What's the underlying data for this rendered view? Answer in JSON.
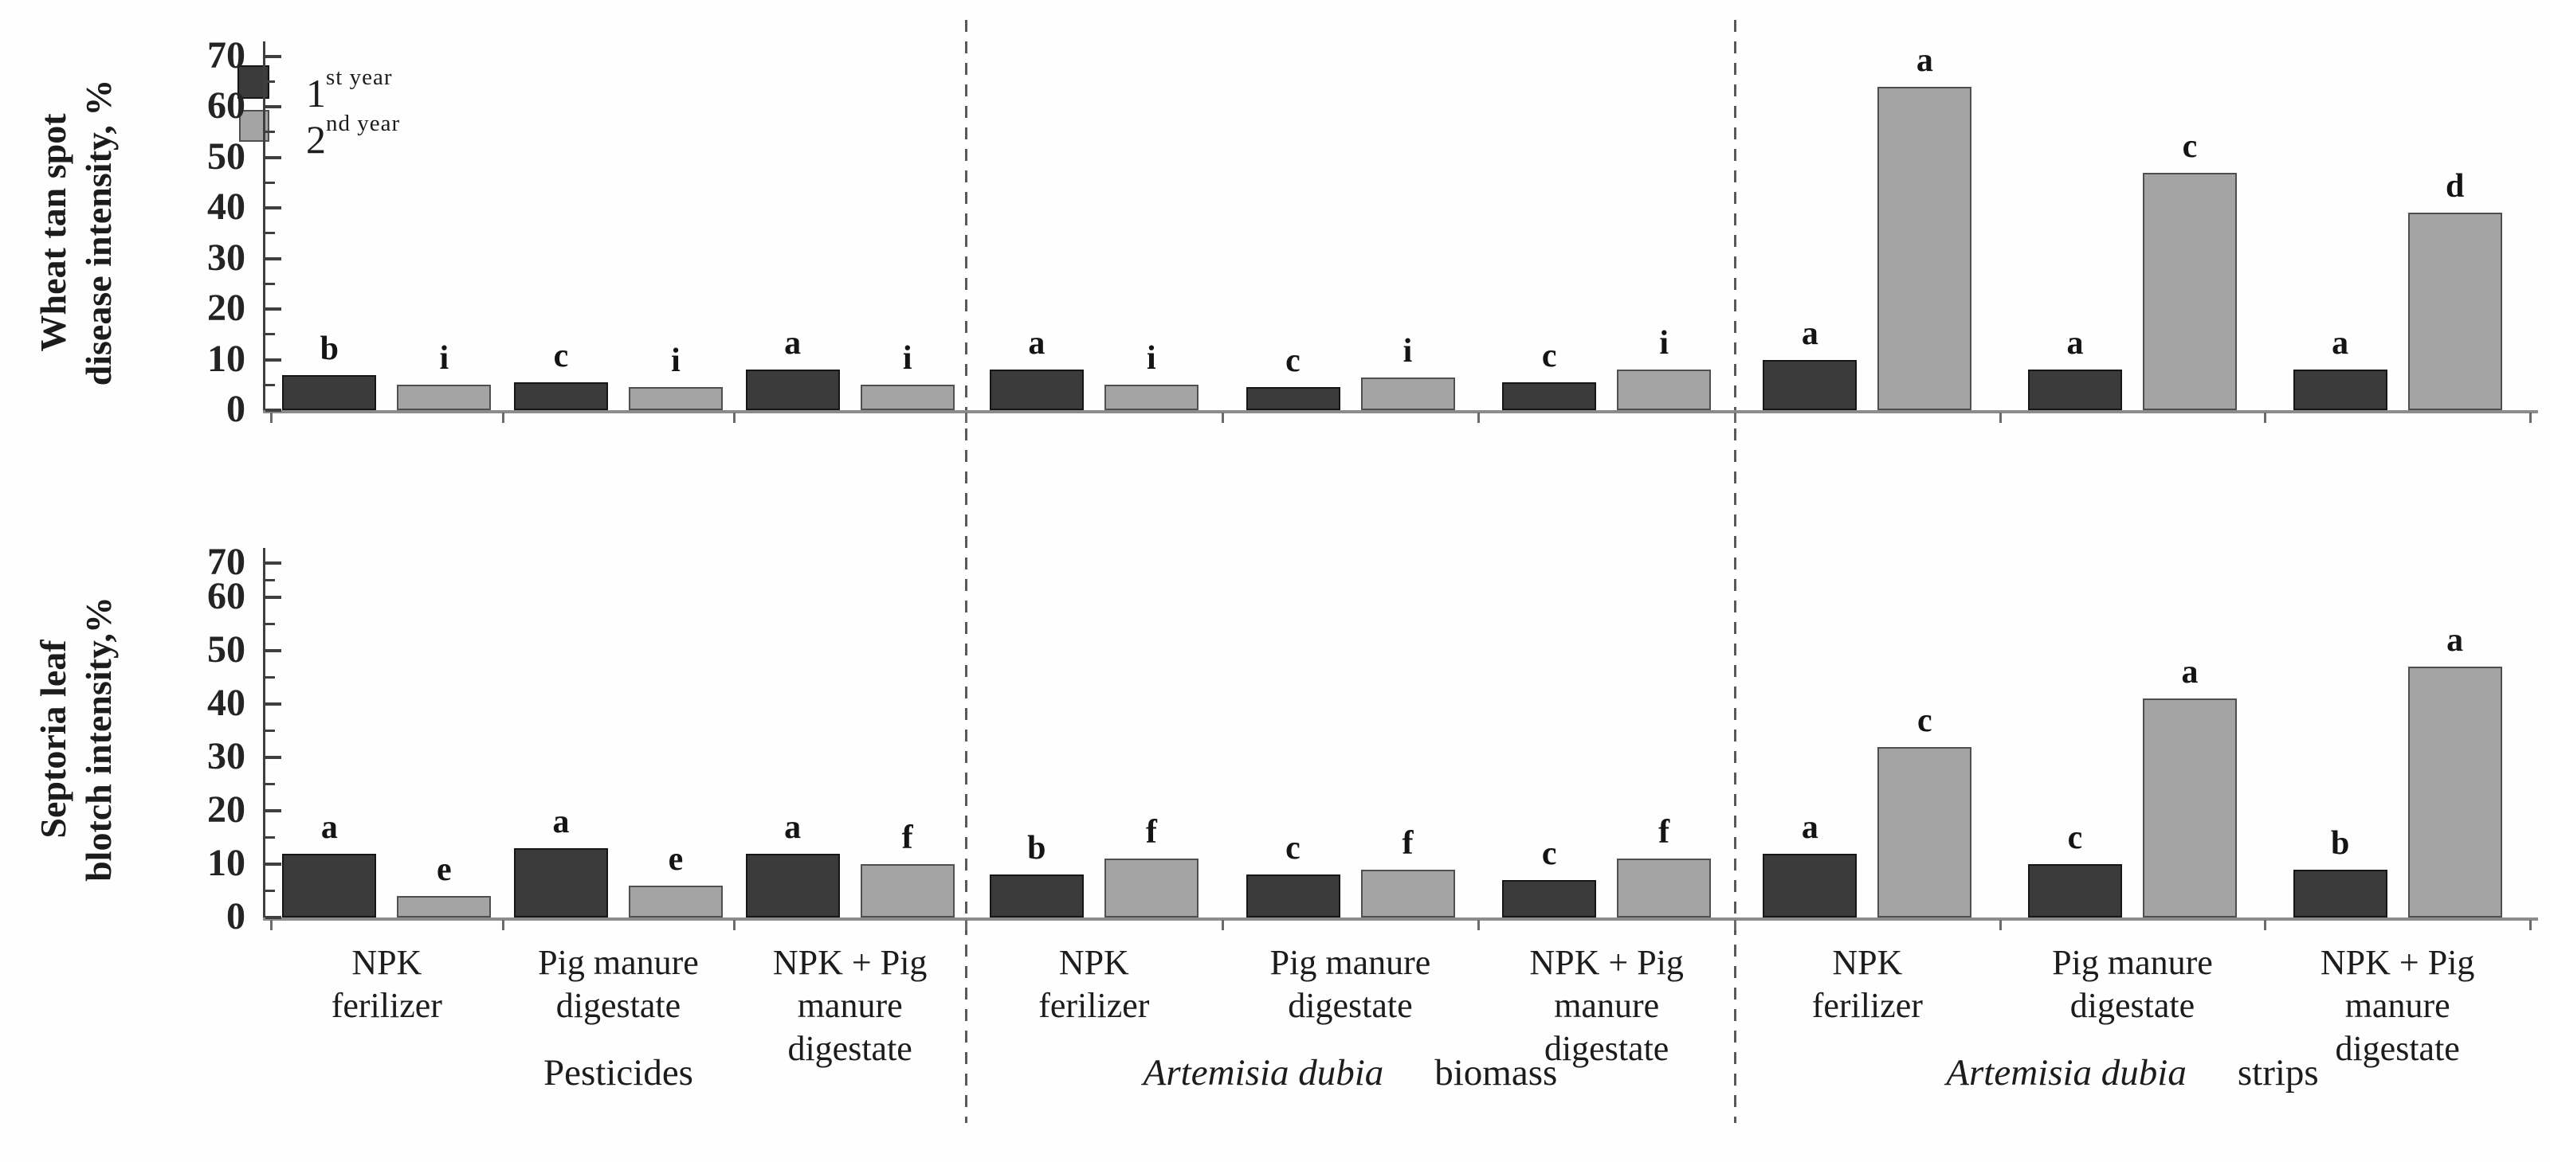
{
  "figure": {
    "colors": {
      "year1_fill": "#3b3b3b",
      "year1_border": "#161616",
      "year2_fill": "#a4a4a4",
      "year2_border": "#4f4f4f",
      "axis": "#3f3f3f",
      "baseline": "#8c8c8c",
      "separator": "#595959",
      "letter": "#141414"
    },
    "legend": [
      {
        "num": "1",
        "sup": "st year",
        "swatch": "#3b3b3b"
      },
      {
        "num": "2",
        "sup": "nd year",
        "swatch": "#a4a4a4"
      }
    ]
  },
  "x_axis": {
    "section_labels": [
      {
        "italic": "",
        "plain": "Pesticides"
      },
      {
        "italic": "Artemisia dubia",
        "plain": "biomass"
      },
      {
        "italic": "Artemisia dubia",
        "plain": "strips"
      }
    ],
    "category_lines": [
      [
        "NPK",
        "ferilizer"
      ],
      [
        "Pig manure",
        "digestate"
      ],
      [
        "NPK + Pig",
        "manure",
        "digestate"
      ]
    ]
  },
  "chart_data": [
    {
      "type": "bar",
      "title": "",
      "ylabel_lines": [
        "Wheat tan spot",
        "disease intensity, %"
      ],
      "ylim": [
        0,
        70
      ],
      "yticks": [
        0,
        10,
        20,
        30,
        40,
        50,
        60,
        70
      ],
      "grid": false,
      "legend_position": "top-left",
      "series": [
        "1st year",
        "2nd year"
      ],
      "sections": [
        {
          "label": "Pesticides",
          "groups": [
            {
              "category": "NPK ferilizer",
              "year1": 7,
              "letter1": "b",
              "year2": 5,
              "letter2": "i"
            },
            {
              "category": "Pig manure digestate",
              "year1": 5.5,
              "letter1": "c",
              "year2": 4.5,
              "letter2": "i"
            },
            {
              "category": "NPK + Pig manure digestate",
              "year1": 8,
              "letter1": "a",
              "year2": 5,
              "letter2": "i"
            }
          ]
        },
        {
          "label": "Artemisia dubia biomass",
          "groups": [
            {
              "category": "NPK ferilizer",
              "year1": 8,
              "letter1": "a",
              "year2": 5,
              "letter2": "i"
            },
            {
              "category": "Pig manure digestate",
              "year1": 4.5,
              "letter1": "c",
              "year2": 6.5,
              "letter2": "i"
            },
            {
              "category": "NPK + Pig manure digestate",
              "year1": 5.5,
              "letter1": "c",
              "year2": 8,
              "letter2": "i"
            }
          ]
        },
        {
          "label": "Artemisia dubia strips",
          "groups": [
            {
              "category": "NPK ferilizer",
              "year1": 10,
              "letter1": "a",
              "year2": 64,
              "letter2": "a"
            },
            {
              "category": "Pig manure digestate",
              "year1": 8,
              "letter1": "a",
              "year2": 47,
              "letter2": "c"
            },
            {
              "category": "NPK + Pig manure digestate",
              "year1": 8,
              "letter1": "a",
              "year2": 39,
              "letter2": "d"
            }
          ]
        }
      ]
    },
    {
      "type": "bar",
      "title": "",
      "ylabel_lines": [
        "Septoria leaf",
        "blotch intensity,%"
      ],
      "ylim": [
        0,
        70
      ],
      "yticks": [
        0,
        10,
        20,
        30,
        40,
        50,
        60,
        70
      ],
      "grid": false,
      "series": [
        "1st year",
        "2nd year"
      ],
      "sections": [
        {
          "label": "Pesticides",
          "groups": [
            {
              "category": "NPK ferilizer",
              "year1": 12,
              "letter1": "a",
              "year2": 4,
              "letter2": "e"
            },
            {
              "category": "Pig manure digestate",
              "year1": 13,
              "letter1": "a",
              "year2": 6,
              "letter2": "e"
            },
            {
              "category": "NPK + Pig manure digestate",
              "year1": 12,
              "letter1": "a",
              "year2": 10,
              "letter2": "f"
            }
          ]
        },
        {
          "label": "Artemisia dubia biomass",
          "groups": [
            {
              "category": "NPK ferilizer",
              "year1": 8,
              "letter1": "b",
              "year2": 11,
              "letter2": "f"
            },
            {
              "category": "Pig manure digestate",
              "year1": 8,
              "letter1": "c",
              "year2": 9,
              "letter2": "f"
            },
            {
              "category": "NPK + Pig manure digestate",
              "year1": 7,
              "letter1": "c",
              "year2": 11,
              "letter2": "f"
            }
          ]
        },
        {
          "label": "Artemisia dubia strips",
          "groups": [
            {
              "category": "NPK ferilizer",
              "year1": 12,
              "letter1": "a",
              "year2": 32,
              "letter2": "c"
            },
            {
              "category": "Pig manure digestate",
              "year1": 10,
              "letter1": "c",
              "year2": 41,
              "letter2": "a"
            },
            {
              "category": "NPK + Pig manure digestate",
              "year1": 9,
              "letter1": "b",
              "year2": 47,
              "letter2": "a"
            }
          ]
        }
      ]
    }
  ]
}
